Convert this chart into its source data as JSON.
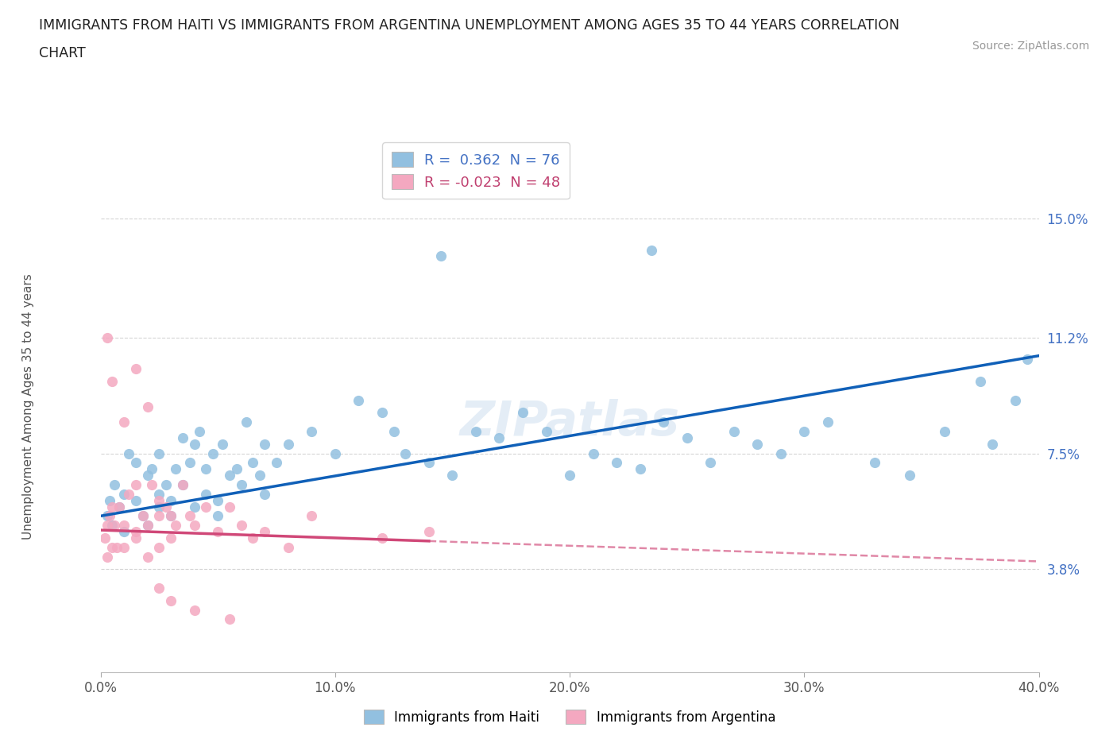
{
  "title_line1": "IMMIGRANTS FROM HAITI VS IMMIGRANTS FROM ARGENTINA UNEMPLOYMENT AMONG AGES 35 TO 44 YEARS CORRELATION",
  "title_line2": "CHART",
  "source": "Source: ZipAtlas.com",
  "ylabel": "Unemployment Among Ages 35 to 44 years",
  "xmin": 0.0,
  "xmax": 40.0,
  "ymin": 0.5,
  "ymax": 17.5,
  "ytick_values": [
    3.8,
    7.5,
    11.2,
    15.0
  ],
  "ytick_labels": [
    "3.8%",
    "7.5%",
    "11.2%",
    "15.0%"
  ],
  "xtick_values": [
    0.0,
    10.0,
    20.0,
    30.0,
    40.0
  ],
  "xtick_labels": [
    "0.0%",
    "10.0%",
    "20.0%",
    "30.0%",
    "40.0%"
  ],
  "haiti_color": "#92c0e0",
  "argentina_color": "#f4a8c0",
  "haiti_line_color": "#1060b8",
  "argentina_line_color": "#d04878",
  "haiti_R": 0.362,
  "haiti_N": 76,
  "argentina_R": -0.023,
  "argentina_N": 48,
  "haiti_x": [
    0.3,
    0.4,
    0.5,
    0.6,
    0.8,
    1.0,
    1.0,
    1.2,
    1.5,
    1.5,
    1.8,
    2.0,
    2.0,
    2.2,
    2.5,
    2.5,
    2.5,
    2.8,
    3.0,
    3.0,
    3.2,
    3.5,
    3.5,
    3.8,
    4.0,
    4.0,
    4.2,
    4.5,
    4.5,
    4.8,
    5.0,
    5.0,
    5.2,
    5.5,
    5.8,
    6.0,
    6.2,
    6.5,
    6.8,
    7.0,
    7.0,
    7.5,
    8.0,
    9.0,
    10.0,
    11.0,
    12.0,
    12.5,
    13.0,
    14.0,
    15.0,
    16.0,
    17.0,
    18.0,
    19.0,
    20.0,
    21.0,
    22.0,
    23.0,
    24.0,
    25.0,
    26.0,
    27.0,
    28.0,
    29.0,
    30.0,
    31.0,
    33.0,
    34.5,
    36.0,
    37.5,
    38.0,
    39.0,
    39.5,
    14.5,
    23.5
  ],
  "haiti_y": [
    5.5,
    6.0,
    5.2,
    6.5,
    5.8,
    6.2,
    5.0,
    7.5,
    6.0,
    7.2,
    5.5,
    6.8,
    5.2,
    7.0,
    6.2,
    7.5,
    5.8,
    6.5,
    6.0,
    5.5,
    7.0,
    6.5,
    8.0,
    7.2,
    7.8,
    5.8,
    8.2,
    6.2,
    7.0,
    7.5,
    6.0,
    5.5,
    7.8,
    6.8,
    7.0,
    6.5,
    8.5,
    7.2,
    6.8,
    7.8,
    6.2,
    7.2,
    7.8,
    8.2,
    7.5,
    9.2,
    8.8,
    8.2,
    7.5,
    7.2,
    6.8,
    8.2,
    8.0,
    8.8,
    8.2,
    6.8,
    7.5,
    7.2,
    7.0,
    8.5,
    8.0,
    7.2,
    8.2,
    7.8,
    7.5,
    8.2,
    8.5,
    7.2,
    6.8,
    8.2,
    9.8,
    7.8,
    9.2,
    10.5,
    13.8,
    14.0
  ],
  "argentina_x": [
    0.2,
    0.3,
    0.3,
    0.4,
    0.5,
    0.5,
    0.6,
    0.7,
    0.8,
    1.0,
    1.0,
    1.2,
    1.5,
    1.5,
    1.5,
    1.8,
    2.0,
    2.0,
    2.2,
    2.5,
    2.5,
    2.5,
    2.8,
    3.0,
    3.0,
    3.2,
    3.5,
    3.8,
    4.0,
    4.5,
    5.0,
    5.5,
    6.0,
    6.5,
    7.0,
    8.0,
    9.0,
    12.0,
    14.0,
    0.3,
    0.5,
    1.0,
    1.5,
    2.0,
    2.5,
    3.0,
    4.0,
    5.5
  ],
  "argentina_y": [
    4.8,
    5.2,
    4.2,
    5.5,
    4.5,
    5.8,
    5.2,
    4.5,
    5.8,
    5.2,
    4.5,
    6.2,
    5.0,
    4.8,
    6.5,
    5.5,
    5.2,
    4.2,
    6.5,
    5.5,
    4.5,
    6.0,
    5.8,
    5.5,
    4.8,
    5.2,
    6.5,
    5.5,
    5.2,
    5.8,
    5.0,
    5.8,
    5.2,
    4.8,
    5.0,
    4.5,
    5.5,
    4.8,
    5.0,
    11.2,
    9.8,
    8.5,
    10.2,
    9.0,
    3.2,
    2.8,
    2.5,
    2.2
  ],
  "watermark": "ZIPatlas",
  "grid_color": "#d0d0d0",
  "bg_color": "#ffffff",
  "legend_label_haiti": "Immigrants from Haiti",
  "legend_label_argentina": "Immigrants from Argentina"
}
